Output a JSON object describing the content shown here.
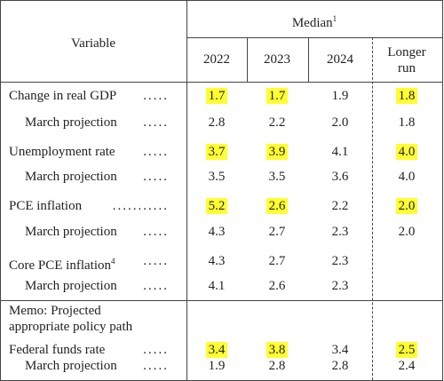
{
  "header": {
    "variable": "Variable",
    "median": "Median",
    "median_note": "1",
    "columns": [
      "2022",
      "2023",
      "2024",
      [
        "Longer",
        "run"
      ]
    ]
  },
  "rows": [
    {
      "label": "Change in real GDP",
      "leader": ".....",
      "values": [
        "1.7",
        "1.7",
        "1.9",
        "1.8"
      ],
      "highlight": [
        true,
        true,
        false,
        true
      ],
      "indent": false
    },
    {
      "label": "March projection",
      "leader": ".....",
      "values": [
        "2.8",
        "2.2",
        "2.0",
        "1.8"
      ],
      "highlight": [
        false,
        false,
        false,
        false
      ],
      "indent": true
    },
    {
      "label": "Unemployment rate",
      "leader": ".....",
      "values": [
        "3.7",
        "3.9",
        "4.1",
        "4.0"
      ],
      "highlight": [
        true,
        true,
        false,
        true
      ],
      "indent": false
    },
    {
      "label": "March projection",
      "leader": ".....",
      "values": [
        "3.5",
        "3.5",
        "3.6",
        "4.0"
      ],
      "highlight": [
        false,
        false,
        false,
        false
      ],
      "indent": true
    },
    {
      "label": "PCE inflation",
      "leader": "...........",
      "values": [
        "5.2",
        "2.6",
        "2.2",
        "2.0"
      ],
      "highlight": [
        true,
        true,
        false,
        true
      ],
      "indent": false
    },
    {
      "label": "March projection",
      "leader": ".....",
      "values": [
        "4.3",
        "2.7",
        "2.3",
        "2.0"
      ],
      "highlight": [
        false,
        false,
        false,
        false
      ],
      "indent": true
    },
    {
      "label": "Core PCE inflation",
      "note": "4",
      "leader": ".....",
      "values": [
        "4.3",
        "2.7",
        "2.3",
        null
      ],
      "highlight": [
        false,
        false,
        false,
        false
      ],
      "indent": false
    },
    {
      "label": "March projection",
      "leader": ".....",
      "values": [
        "4.1",
        "2.6",
        "2.3",
        null
      ],
      "highlight": [
        false,
        false,
        false,
        false
      ],
      "indent": true
    }
  ],
  "memo": {
    "lines": [
      "Memo: Projected",
      "appropriate policy path"
    ],
    "rows": [
      {
        "label": "Federal funds rate",
        "leader": ".....",
        "values": [
          "3.4",
          "3.8",
          "3.4",
          "2.5"
        ],
        "highlight": [
          true,
          true,
          false,
          true
        ],
        "indent": false
      },
      {
        "label": "March projection",
        "leader": ".....",
        "values": [
          "1.9",
          "2.8",
          "2.8",
          "2.4"
        ],
        "highlight": [
          false,
          false,
          false,
          false
        ],
        "indent": true
      }
    ]
  }
}
